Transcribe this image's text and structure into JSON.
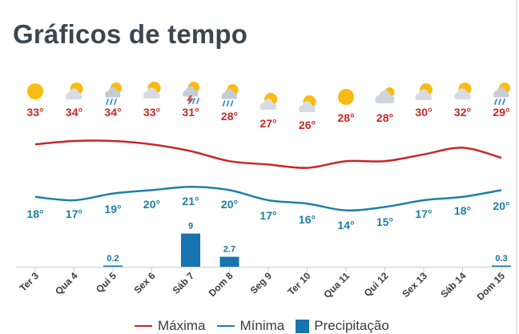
{
  "title": "Gráficos de tempo",
  "legend": [
    {
      "label": "Máxima",
      "color": "#c62828",
      "kind": "line"
    },
    {
      "label": "Mínima",
      "color": "#1e7fa8",
      "kind": "line"
    },
    {
      "label": "Precipitação",
      "color": "#1874b0",
      "kind": "box"
    }
  ],
  "chart_data": {
    "type": "line",
    "categories": [
      "Ter 3",
      "Qua 4",
      "Qui 5",
      "Sex 6",
      "Sáb 7",
      "Dom 8",
      "Seg 9",
      "Ter 10",
      "Qua 11",
      "Qui 12",
      "Sex 13",
      "Sáb 14",
      "Dom 15"
    ],
    "icons": [
      "sun-icon",
      "partly-cloudy-icon",
      "rain-shower-icon",
      "partly-cloudy-icon",
      "thunderstorm-icon",
      "rain-shower-icon",
      "partly-cloudy-icon",
      "partly-cloudy-icon",
      "sun-icon",
      "cloudy-icon",
      "partly-cloudy-icon",
      "partly-cloudy-icon",
      "rain-shower-icon"
    ],
    "series": [
      {
        "name": "Máxima",
        "color": "#c62828",
        "values": [
          33,
          34,
          34,
          33,
          31,
          28,
          27,
          26,
          28,
          28,
          30,
          32,
          29
        ],
        "labels": [
          "33°",
          "34°",
          "34°",
          "33°",
          "31°",
          "28°",
          "27°",
          "26°",
          "28°",
          "28°",
          "30°",
          "32°",
          "29°"
        ]
      },
      {
        "name": "Mínima",
        "color": "#1e7fa8",
        "values": [
          18,
          17,
          19,
          20,
          21,
          20,
          17,
          16,
          14,
          15,
          17,
          18,
          20
        ],
        "labels": [
          "18°",
          "17°",
          "19°",
          "20°",
          "21°",
          "20°",
          "17°",
          "16°",
          "14°",
          "15°",
          "17°",
          "18°",
          "20°"
        ]
      },
      {
        "name": "Precipitação",
        "color": "#1874b0",
        "type": "bar",
        "values": [
          0,
          0,
          0.2,
          0,
          9,
          2.7,
          0,
          0,
          0,
          0,
          0,
          0,
          0.3
        ],
        "labels": [
          "",
          "",
          "0.2",
          "",
          "9",
          "2.7",
          "",
          "",
          "",
          "",
          "",
          "",
          "0.3"
        ]
      }
    ]
  }
}
